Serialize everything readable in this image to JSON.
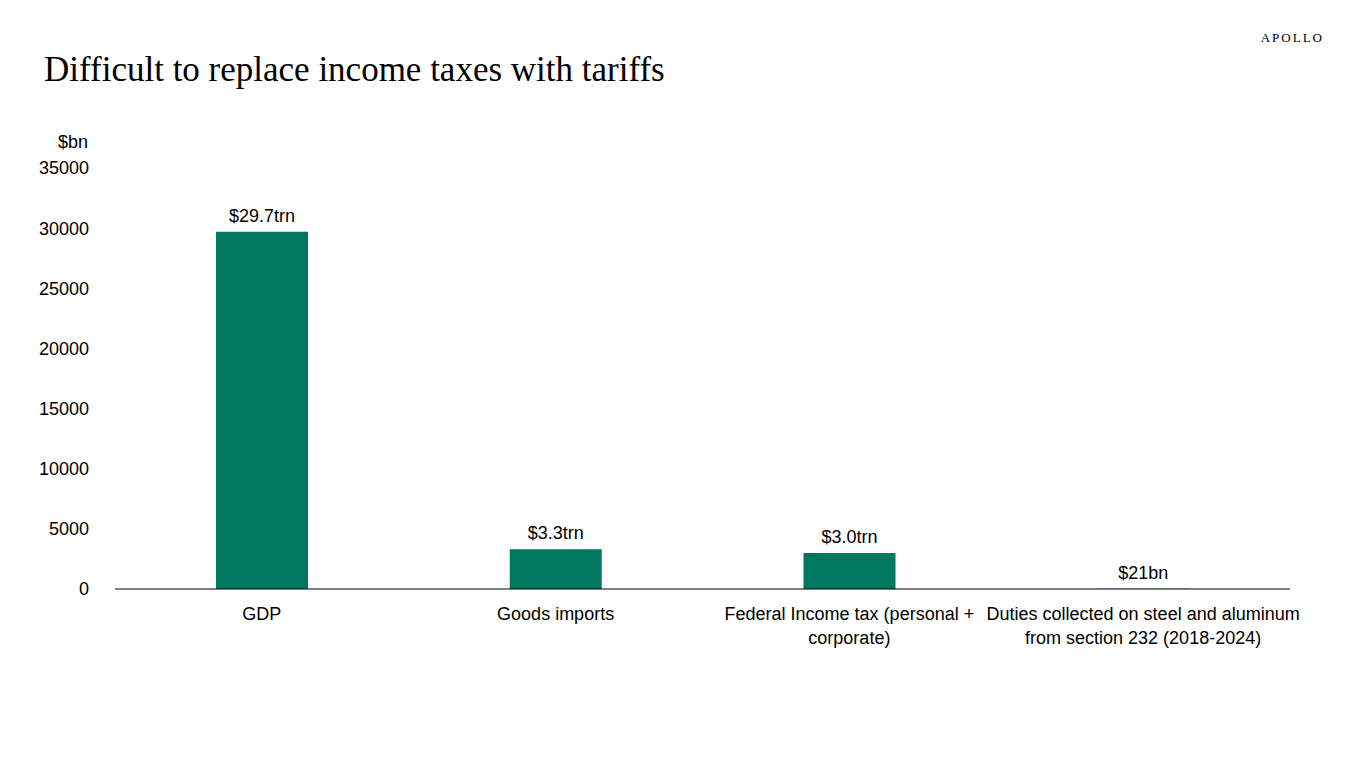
{
  "chart_data": {
    "type": "bar",
    "title": "Difficult to replace income taxes with tariffs",
    "brand": "APOLLO",
    "ylabel": "$bn",
    "categories": [
      "GDP",
      "Goods imports",
      "Federal Income tax (personal + corporate)",
      "Duties collected on steel and aluminum from section 232 (2018-2024)"
    ],
    "values": [
      29700,
      3300,
      3000,
      21
    ],
    "value_labels": [
      "$29.7trn",
      "$3.3trn",
      "$3.0trn",
      "$21bn"
    ],
    "color": "#00785f",
    "ylim": [
      0,
      35000
    ],
    "yticks": [
      0,
      5000,
      10000,
      15000,
      20000,
      25000,
      30000,
      35000
    ],
    "grid": false,
    "data_labels": true
  }
}
